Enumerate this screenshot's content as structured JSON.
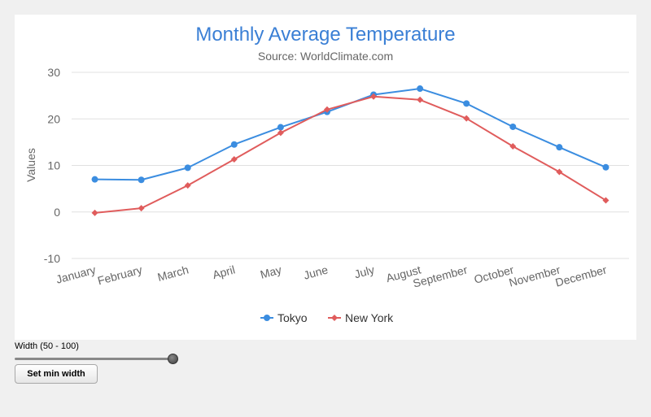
{
  "chart_data": {
    "type": "line",
    "title": "Monthly Average Temperature",
    "subtitle": "Source: WorldClimate.com",
    "xlabel": "",
    "ylabel": "Values",
    "ylim": [
      -10,
      30
    ],
    "yticks": [
      -10,
      0,
      10,
      20,
      30
    ],
    "ytick_labels": [
      "-10",
      "0",
      "10",
      "20",
      "30"
    ],
    "grid": true,
    "legend_position": "bottom-center",
    "categories": [
      "January",
      "February",
      "March",
      "April",
      "May",
      "June",
      "July",
      "August",
      "September",
      "October",
      "November",
      "December"
    ],
    "series": [
      {
        "name": "Tokyo",
        "color": "#3b8de0",
        "marker": "circle",
        "values": [
          7.0,
          6.9,
          9.5,
          14.5,
          18.2,
          21.5,
          25.2,
          26.5,
          23.3,
          18.3,
          13.9,
          9.6
        ]
      },
      {
        "name": "New York",
        "color": "#e05c5c",
        "marker": "diamond",
        "values": [
          -0.2,
          0.8,
          5.7,
          11.3,
          17.0,
          22.0,
          24.8,
          24.1,
          20.1,
          14.1,
          8.6,
          2.5
        ]
      }
    ]
  },
  "controls": {
    "width_label": "Width (50 - 100)",
    "slider_value": 100,
    "slider_min": 50,
    "slider_max": 100,
    "button_label": "Set min width"
  }
}
